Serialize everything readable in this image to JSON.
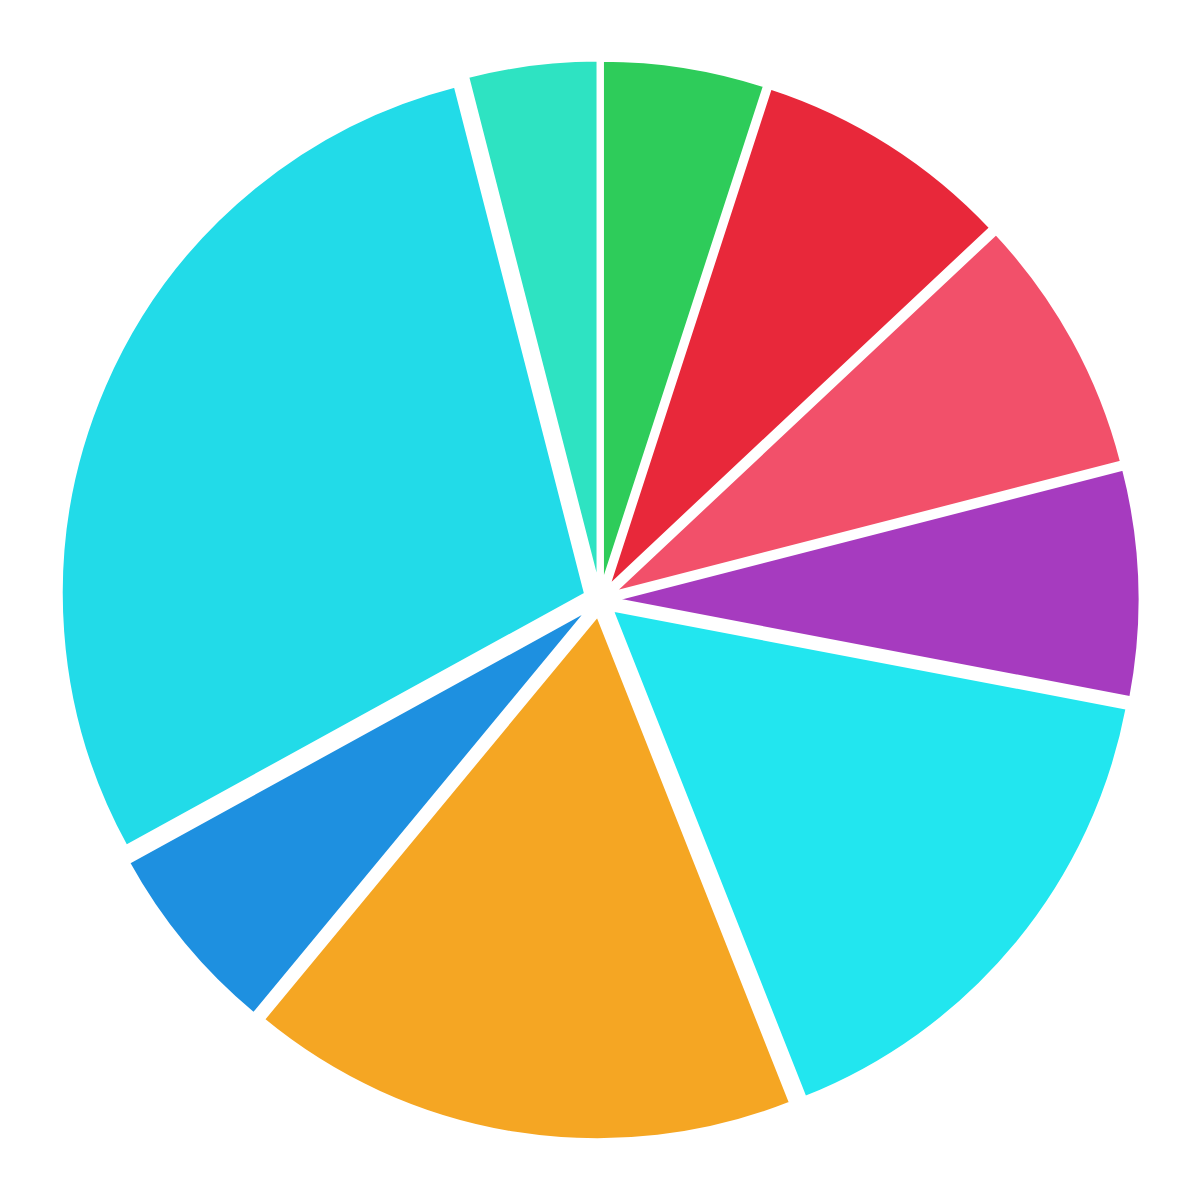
{
  "chart_data": {
    "type": "pie",
    "values": [
      5,
      8,
      8,
      7,
      16,
      17,
      6,
      29,
      4
    ],
    "colors": [
      "#2ecc5a",
      "#e8283a",
      "#f2506a",
      "#a63bbf",
      "#22e6ef",
      "#f5a623",
      "#1e90e0",
      "#22dbe8",
      "#2ee3c2"
    ]
  }
}
